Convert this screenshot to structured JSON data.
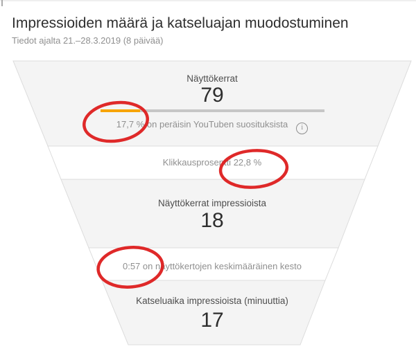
{
  "header": {
    "title": "Impressioiden määrä ja katseluajan muodostuminen",
    "subtitle": "Tiedot ajalta 21.–28.3.2019 (8 päivää)"
  },
  "chart_data": {
    "type": "funnel",
    "title": "Impressioiden määrä ja katseluajan muodostuminen",
    "subtitle": "Tiedot ajalta 21.–28.3.2019 (8 päivää)",
    "stages": [
      {
        "label": "Näyttökerrat",
        "value": "79",
        "source_percent": 17.7,
        "source_percent_text": "17,7 %",
        "source_caption_suffix": "on peräisin YouTuben suosituksista"
      },
      {
        "label": "Klikkausprosentti",
        "value_text": "22,8 %"
      },
      {
        "label": "Näyttökerrat impressioista",
        "value": "18"
      },
      {
        "value_text": "0:57",
        "label_suffix": "on näyttökertojen keskimääräinen kesto"
      },
      {
        "label": "Katseluaika impressioista (minuuttia)",
        "value": "17"
      }
    ]
  },
  "annotations": {
    "pen_color": "#dd1d1d",
    "circled_values": [
      "17,7 %",
      "22,8 %",
      "0:57"
    ]
  },
  "icons": {
    "info_glyph": "i"
  },
  "colors": {
    "accent_orange": "#f7a400",
    "bar_track_gray": "#c6c6c6",
    "section_gray": "#f4f4f4",
    "section_white": "#ffffff",
    "border_gray": "#dcdcdc",
    "title_text": "#2e2e2e",
    "muted_text": "#8f8f8f"
  }
}
